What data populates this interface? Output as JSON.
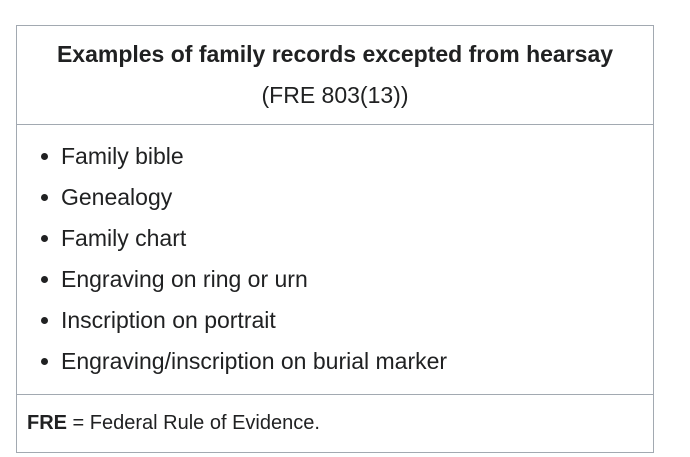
{
  "header": {
    "title": "Examples of family records excepted from hearsay",
    "subtitle": "(FRE 803(13))"
  },
  "list": {
    "items": [
      "Family bible",
      "Genealogy",
      "Family chart",
      "Engraving on ring or urn",
      "Inscription on portrait",
      "Engraving/inscription on burial marker"
    ]
  },
  "footer": {
    "abbr": "FRE",
    "definition": " = Federal Rule of Evidence."
  }
}
